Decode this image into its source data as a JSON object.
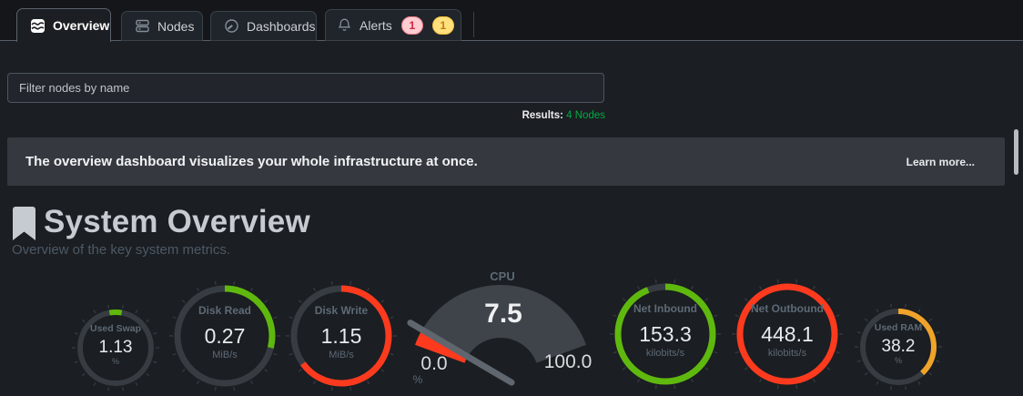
{
  "tabs": {
    "items": [
      {
        "label": "Overview",
        "active": true
      },
      {
        "label": "Nodes",
        "active": false
      },
      {
        "label": "Dashboards",
        "active": false
      },
      {
        "label": "Alerts",
        "active": false
      }
    ],
    "alerts_badges": {
      "critical": "1",
      "warning": "1"
    }
  },
  "filter": {
    "placeholder": "Filter nodes by name"
  },
  "results": {
    "label": "Results:",
    "value": "4 Nodes"
  },
  "banner": {
    "message": "The overview dashboard visualizes your whole infrastructure at once.",
    "link_label": "Learn more..."
  },
  "section": {
    "title": "System Overview",
    "subtitle": "Overview of the key system metrics."
  },
  "colors": {
    "green": "#5fb80e",
    "red": "#fd3a1e",
    "orange": "#f0a32a",
    "muted_text": "#5d6a76",
    "ring_base": "#373c43",
    "tick": "#343a41"
  },
  "chart_data": {
    "type": "gauge-set",
    "gauges": [
      {
        "id": "used-swap",
        "label": "Used Swap",
        "value": "1.13",
        "unit": "%",
        "fraction": 0.055,
        "color": "#5fb80e",
        "size": "small",
        "centered_arc": true
      },
      {
        "id": "disk-read",
        "label": "Disk Read",
        "value": "0.27",
        "unit": "MiB/s",
        "fraction": 0.29,
        "color": "#5fb80e",
        "size": "large"
      },
      {
        "id": "disk-write",
        "label": "Disk Write",
        "value": "1.15",
        "unit": "MiB/s",
        "fraction": 0.65,
        "color": "#fd3a1e",
        "size": "large"
      },
      {
        "id": "net-inbound",
        "label": "Net Inbound",
        "value": "153.3",
        "unit": "kilobits/s",
        "fraction": 0.94,
        "color": "#5fb80e",
        "size": "large"
      },
      {
        "id": "net-outbound",
        "label": "Net Outbound",
        "value": "448.1",
        "unit": "kilobits/s",
        "fraction": 1.0,
        "color": "#fd3a1e",
        "size": "large"
      },
      {
        "id": "used-ram",
        "label": "Used RAM",
        "value": "38.2",
        "unit": "%",
        "fraction": 0.382,
        "color": "#f0a32a",
        "size": "small"
      }
    ],
    "cpu_gauge": {
      "id": "cpu",
      "label": "CPU",
      "value": "7.5",
      "unit": "%",
      "min": "0.0",
      "max": "100.0",
      "value_fraction": 0.075,
      "fill_color": "#fd3a1e",
      "fan_color": "#3f444b",
      "needle_color": "#60666d"
    },
    "ring_base_color": "#373c43",
    "tick_color": "#343a41"
  }
}
